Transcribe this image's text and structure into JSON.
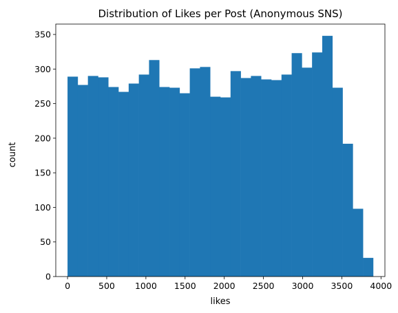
{
  "chart_data": {
    "type": "bar",
    "title": "Distribution of Likes per Post (Anonymous SNS)",
    "xlabel": "likes",
    "ylabel": "count",
    "xlim": [
      -150,
      4050
    ],
    "ylim": [
      0,
      365
    ],
    "xticks": [
      0,
      500,
      1000,
      1500,
      2000,
      2500,
      3000,
      3500,
      4000
    ],
    "yticks": [
      0,
      50,
      100,
      150,
      200,
      250,
      300,
      350
    ],
    "bin_width": 130,
    "bins": [
      {
        "x0": 0,
        "x1": 130,
        "value": 289
      },
      {
        "x0": 130,
        "x1": 260,
        "value": 277
      },
      {
        "x0": 260,
        "x1": 390,
        "value": 290
      },
      {
        "x0": 390,
        "x1": 520,
        "value": 288
      },
      {
        "x0": 520,
        "x1": 650,
        "value": 274
      },
      {
        "x0": 650,
        "x1": 780,
        "value": 267
      },
      {
        "x0": 780,
        "x1": 910,
        "value": 279
      },
      {
        "x0": 910,
        "x1": 1040,
        "value": 292
      },
      {
        "x0": 1040,
        "x1": 1170,
        "value": 313
      },
      {
        "x0": 1170,
        "x1": 1300,
        "value": 274
      },
      {
        "x0": 1300,
        "x1": 1430,
        "value": 273
      },
      {
        "x0": 1430,
        "x1": 1560,
        "value": 265
      },
      {
        "x0": 1560,
        "x1": 1690,
        "value": 301
      },
      {
        "x0": 1690,
        "x1": 1820,
        "value": 303
      },
      {
        "x0": 1820,
        "x1": 1950,
        "value": 260
      },
      {
        "x0": 1950,
        "x1": 2080,
        "value": 259
      },
      {
        "x0": 2080,
        "x1": 2210,
        "value": 297
      },
      {
        "x0": 2210,
        "x1": 2340,
        "value": 287
      },
      {
        "x0": 2340,
        "x1": 2470,
        "value": 290
      },
      {
        "x0": 2470,
        "x1": 2600,
        "value": 285
      },
      {
        "x0": 2600,
        "x1": 2730,
        "value": 284
      },
      {
        "x0": 2730,
        "x1": 2860,
        "value": 292
      },
      {
        "x0": 2860,
        "x1": 2990,
        "value": 323
      },
      {
        "x0": 2990,
        "x1": 3120,
        "value": 302
      },
      {
        "x0": 3120,
        "x1": 3250,
        "value": 324
      },
      {
        "x0": 3250,
        "x1": 3380,
        "value": 348
      },
      {
        "x0": 3380,
        "x1": 3510,
        "value": 273
      },
      {
        "x0": 3510,
        "x1": 3640,
        "value": 192
      },
      {
        "x0": 3640,
        "x1": 3770,
        "value": 98
      },
      {
        "x0": 3770,
        "x1": 3900,
        "value": 27
      }
    ],
    "bar_color": "#1f77b4",
    "grid": false,
    "legend": "none"
  }
}
